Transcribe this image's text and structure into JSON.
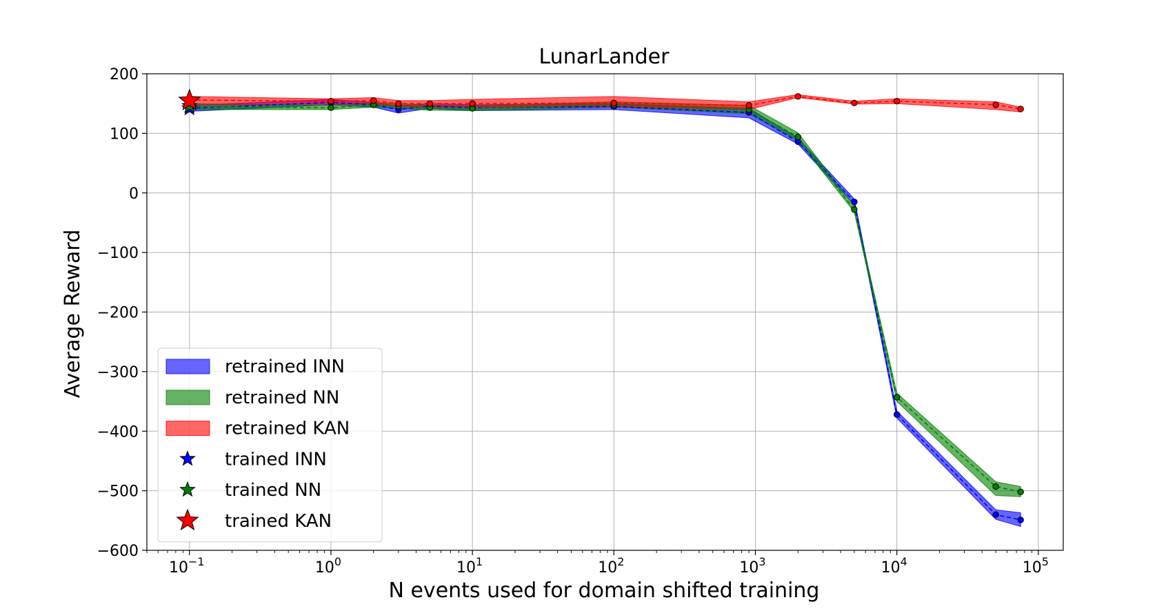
{
  "chart_data": {
    "type": "line",
    "title": "LunarLander",
    "xlabel": "N events used for domain shifted training",
    "ylabel": "Average Reward",
    "xscale": "log",
    "xlim": [
      0.05,
      150000
    ],
    "ylim": [
      -600,
      200
    ],
    "grid": true,
    "legend_position": "lower-left",
    "x_ticks": [
      {
        "value": 0.1,
        "base": "10",
        "exp": "−1"
      },
      {
        "value": 1,
        "base": "10",
        "exp": "0"
      },
      {
        "value": 10,
        "base": "10",
        "exp": "1"
      },
      {
        "value": 100,
        "base": "10",
        "exp": "2"
      },
      {
        "value": 1000,
        "base": "10",
        "exp": "3"
      },
      {
        "value": 10000,
        "base": "10",
        "exp": "4"
      },
      {
        "value": 100000,
        "base": "10",
        "exp": "5"
      }
    ],
    "y_ticks": [
      {
        "value": 200,
        "label": "200"
      },
      {
        "value": 100,
        "label": "100"
      },
      {
        "value": 0,
        "label": "0"
      },
      {
        "value": -100,
        "label": "−100"
      },
      {
        "value": -200,
        "label": "−200"
      },
      {
        "value": -300,
        "label": "−300"
      },
      {
        "value": -400,
        "label": "−400"
      },
      {
        "value": -500,
        "label": "−500"
      },
      {
        "value": -600,
        "label": "−600"
      }
    ],
    "series": [
      {
        "name": "retrained INN",
        "color": "#0000ff",
        "x": [
          0.1,
          1,
          2,
          3,
          5,
          10,
          100,
          900,
          2000,
          5000,
          10000,
          50000,
          75000
        ],
        "y": [
          142,
          152,
          148,
          140,
          146,
          143,
          145,
          135,
          86,
          -15,
          -372,
          -540,
          -549
        ],
        "lower": [
          137,
          148,
          144,
          134,
          142,
          138,
          140,
          126,
          82,
          -20,
          -378,
          -548,
          -560
        ],
        "upper": [
          147,
          157,
          152,
          146,
          150,
          148,
          150,
          142,
          92,
          -10,
          -366,
          -532,
          -537
        ]
      },
      {
        "name": "retrained NN",
        "color": "#008000",
        "x": [
          0.1,
          1,
          2,
          3,
          5,
          10,
          100,
          900,
          2000,
          5000,
          10000,
          50000,
          75000
        ],
        "y": [
          145,
          143,
          148,
          146,
          143,
          142,
          148,
          140,
          94,
          -28,
          -343,
          -493,
          -502
        ],
        "lower": [
          140,
          140,
          144,
          142,
          139,
          138,
          144,
          133,
          88,
          -32,
          -350,
          -508,
          -510
        ],
        "upper": [
          150,
          147,
          152,
          150,
          147,
          146,
          153,
          147,
          101,
          -22,
          -336,
          -485,
          -493
        ]
      },
      {
        "name": "retrained KAN",
        "color": "#ff0000",
        "x": [
          0.1,
          1,
          2,
          3,
          5,
          10,
          100,
          900,
          2000,
          5000,
          10000,
          50000,
          75000
        ],
        "y": [
          156,
          154,
          155,
          150,
          150,
          150,
          151,
          147,
          162,
          151,
          154,
          148,
          141
        ],
        "lower": [
          148,
          149,
          149,
          145,
          144,
          145,
          145,
          140,
          160,
          149,
          150,
          140,
          136
        ],
        "upper": [
          162,
          158,
          160,
          155,
          155,
          157,
          162,
          153,
          165,
          154,
          158,
          153,
          144
        ]
      }
    ],
    "reference_points": [
      {
        "name": "trained INN",
        "color": "#0000ff",
        "x": 0.1,
        "y": 142,
        "size": "small"
      },
      {
        "name": "trained NN",
        "color": "#008000",
        "x": 0.1,
        "y": 146,
        "size": "small"
      },
      {
        "name": "trained KAN",
        "color": "#ff0000",
        "x": 0.1,
        "y": 155,
        "size": "large"
      }
    ],
    "legend": [
      {
        "label": "retrained INN",
        "kind": "band",
        "color": "#0000ff"
      },
      {
        "label": "retrained NN",
        "kind": "band",
        "color": "#008000"
      },
      {
        "label": "retrained KAN",
        "kind": "band",
        "color": "#ff0000"
      },
      {
        "label": "trained INN",
        "kind": "star",
        "color": "#0000ff",
        "size": "small"
      },
      {
        "label": "trained NN",
        "kind": "star",
        "color": "#008000",
        "size": "small"
      },
      {
        "label": "trained KAN",
        "kind": "star",
        "color": "#ff0000",
        "size": "large"
      }
    ]
  }
}
